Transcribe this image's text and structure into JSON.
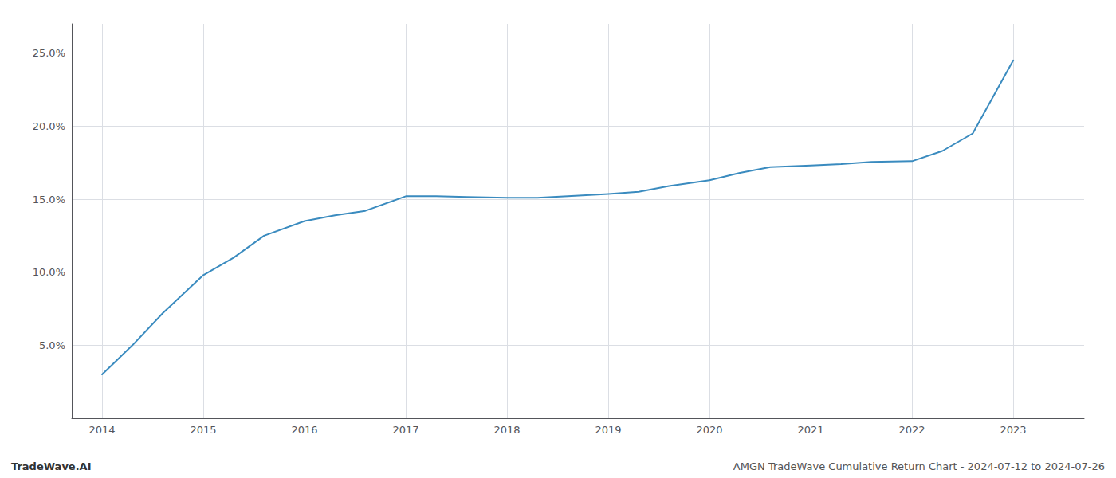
{
  "chart_data": {
    "type": "line",
    "x": [
      2014.0,
      2014.3,
      2014.6,
      2015.0,
      2015.3,
      2015.6,
      2016.0,
      2016.3,
      2016.6,
      2017.0,
      2017.3,
      2017.6,
      2018.0,
      2018.3,
      2018.6,
      2019.0,
      2019.3,
      2019.6,
      2020.0,
      2020.3,
      2020.6,
      2021.0,
      2021.3,
      2021.6,
      2022.0,
      2022.3,
      2022.6,
      2023.0
    ],
    "values": [
      3.0,
      5.0,
      7.2,
      9.8,
      11.0,
      12.5,
      13.5,
      13.9,
      14.2,
      15.2,
      15.2,
      15.15,
      15.1,
      15.1,
      15.2,
      15.35,
      15.5,
      15.9,
      16.3,
      16.8,
      17.2,
      17.3,
      17.4,
      17.55,
      17.6,
      18.3,
      19.5,
      24.5
    ],
    "color": "#3a8bbf",
    "xlim": [
      2013.7,
      2023.7
    ],
    "xticks": [
      2014,
      2015,
      2016,
      2017,
      2018,
      2019,
      2020,
      2021,
      2022,
      2023
    ],
    "ylim": [
      0.0,
      27.0
    ],
    "yticks": [
      {
        "value": 5.0,
        "label": "5.0%"
      },
      {
        "value": 10.0,
        "label": "10.0%"
      },
      {
        "value": 15.0,
        "label": "15.0%"
      },
      {
        "value": 20.0,
        "label": "20.0%"
      },
      {
        "value": 25.0,
        "label": "25.0%"
      }
    ],
    "grid": true,
    "annotations": [
      "TradeWave.AI",
      "AMGN TradeWave Cumulative Return Chart - 2024-07-12 to 2024-07-26"
    ]
  }
}
